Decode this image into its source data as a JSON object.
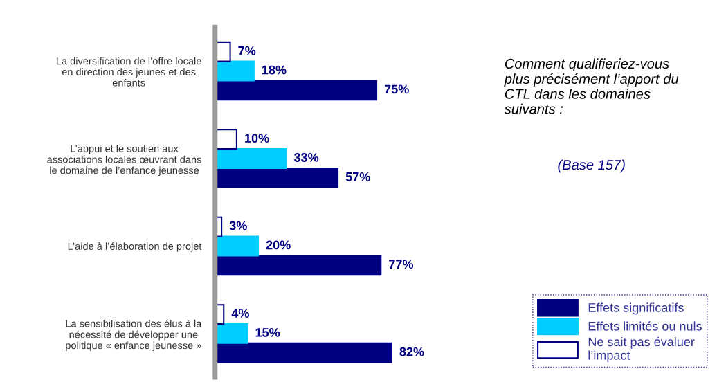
{
  "chart_data": {
    "type": "bar",
    "orientation": "horizontal",
    "title": "Comment qualifieriez-vous\nplus précisément l’apport du\nCTL dans les domaines\nsuivants :",
    "subtitle": "(Base 157)",
    "categories": [
      "La diversification de l’offre locale\nen direction des jeunes et des\nenfants",
      "L’appui et le soutien aux\nassociations locales œuvrant dans\nle domaine de l’enfance jeunesse",
      "L’aide à l’élaboration de projet",
      "La sensibilisation des élus à la\nnécessité de développer une\npolitique « enfance jeunesse »"
    ],
    "series": [
      {
        "name": "Effets significatifs",
        "color": "#000080",
        "values": [
          75,
          57,
          77,
          82
        ],
        "value_labels": [
          "75%",
          "57%",
          "77%",
          "82%"
        ]
      },
      {
        "name": "Effets limités ou nuls",
        "color": "#00ccff",
        "values": [
          18,
          33,
          20,
          15
        ],
        "value_labels": [
          "18%",
          "33%",
          "20%",
          "15%"
        ]
      },
      {
        "name": "Ne sait pas évaluer\nl’impact",
        "color": "#ffffff",
        "values": [
          7,
          10,
          3,
          4
        ],
        "value_labels": [
          "7%",
          "10%",
          "3%",
          "4%"
        ]
      }
    ],
    "legend": "bottom right",
    "grid": false
  }
}
